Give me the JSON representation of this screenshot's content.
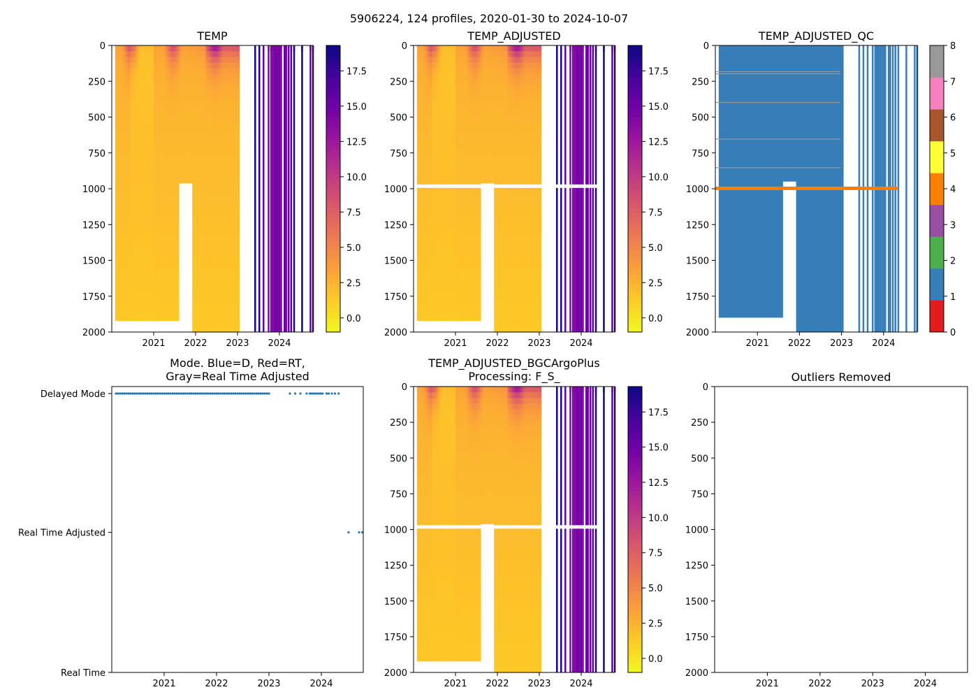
{
  "figure": {
    "suptitle": "5906224, 124 profiles, 2020-01-30 to 2024-10-07",
    "float_id": "5906224",
    "n_profiles": 124,
    "date_start": "2020-01-30",
    "date_end": "2024-10-07"
  },
  "colors": {
    "plasma_r": [
      "#f0f921",
      "#fdca26",
      "#fb9f3a",
      "#ed7953",
      "#d8576b",
      "#bd3786",
      "#9c179e",
      "#7201a8",
      "#46039f",
      "#0d0887"
    ],
    "qc": [
      "#e41a1c",
      "#377eb8",
      "#4daf4a",
      "#984ea3",
      "#ff7f00",
      "#ffff33",
      "#a65628",
      "#f781bf",
      "#999999"
    ],
    "mode_point": "#1f77b4",
    "axis": "#000000"
  },
  "chart_data": [
    {
      "id": "temp",
      "type": "heatmap",
      "title": "TEMP",
      "xlim": [
        2020.0,
        2024.8
      ],
      "ylim": [
        2000,
        0
      ],
      "xticks": [
        "2021",
        "2022",
        "2023",
        "2024"
      ],
      "xtick_values": [
        2021,
        2022,
        2023,
        2024
      ],
      "yticks": [
        "0",
        "250",
        "500",
        "750",
        "1000",
        "1250",
        "1500",
        "1750",
        "2000"
      ],
      "ytick_values": [
        0,
        250,
        500,
        750,
        1000,
        1250,
        1500,
        1750,
        2000
      ],
      "colorbar": {
        "min": -1.0,
        "max": 19.3,
        "ticks": [
          "0.0",
          "2.5",
          "5.0",
          "7.5",
          "10.0",
          "12.5",
          "15.0",
          "17.5"
        ],
        "tick_values": [
          0,
          2.5,
          5,
          7.5,
          10,
          12.5,
          15,
          17.5
        ]
      },
      "dropout_band": false
    },
    {
      "id": "temp_adjusted",
      "type": "heatmap",
      "title": "TEMP_ADJUSTED",
      "xlim": [
        2020.0,
        2024.8
      ],
      "ylim": [
        2000,
        0
      ],
      "xticks": [
        "2021",
        "2022",
        "2023",
        "2024"
      ],
      "xtick_values": [
        2021,
        2022,
        2023,
        2024
      ],
      "yticks": [
        "0",
        "250",
        "500",
        "750",
        "1000",
        "1250",
        "1500",
        "1750",
        "2000"
      ],
      "ytick_values": [
        0,
        250,
        500,
        750,
        1000,
        1250,
        1500,
        1750,
        2000
      ],
      "colorbar": {
        "min": -1.0,
        "max": 19.3,
        "ticks": [
          "0.0",
          "2.5",
          "5.0",
          "7.5",
          "10.0",
          "12.5",
          "15.0",
          "17.5"
        ],
        "tick_values": [
          0,
          2.5,
          5,
          7.5,
          10,
          12.5,
          15,
          17.5
        ]
      },
      "dropout_band": true
    },
    {
      "id": "temp_adjusted_qc",
      "type": "heatmap",
      "title": "TEMP_ADJUSTED_QC",
      "xlim": [
        2020.0,
        2024.8
      ],
      "ylim": [
        2000,
        0
      ],
      "xticks": [
        "2021",
        "2022",
        "2023",
        "2024"
      ],
      "xtick_values": [
        2021,
        2022,
        2023,
        2024
      ],
      "yticks": [
        "0",
        "250",
        "500",
        "750",
        "1000",
        "1250",
        "1500",
        "1750",
        "2000"
      ],
      "ytick_values": [
        0,
        250,
        500,
        750,
        1000,
        1250,
        1500,
        1750,
        2000
      ],
      "colorbar": {
        "min": 0,
        "max": 8,
        "ticks": [
          "0",
          "1",
          "2",
          "3",
          "4",
          "5",
          "6",
          "7",
          "8"
        ],
        "tick_values": [
          0,
          1,
          2,
          3,
          4,
          5,
          6,
          7,
          8
        ]
      },
      "dominant_qc": 1,
      "flagged_band": {
        "qc": 4,
        "depth": 985,
        "x_from": 2020.0,
        "x_to": 2024.35
      },
      "flagged_lines": {
        "qc": 8,
        "depths": [
          180,
          195,
          395,
          650,
          850
        ]
      }
    },
    {
      "id": "mode",
      "type": "scatter",
      "title_lines": [
        "Mode. Blue=D, Red=RT,",
        "Gray=Real Time Adjusted"
      ],
      "xlim": [
        2020.0,
        2024.8
      ],
      "xticks": [
        "2021",
        "2022",
        "2023",
        "2024"
      ],
      "xtick_values": [
        2021,
        2022,
        2023,
        2024
      ],
      "yticks": [
        "Delayed Mode",
        "Real Time Adjusted",
        "Real Time"
      ],
      "ytick_values": [
        2,
        1,
        0
      ],
      "series": [
        {
          "name": "Delayed Mode",
          "y": 2,
          "x": [
            2020.08,
            2020.12,
            2020.16,
            2020.2,
            2020.24,
            2020.28,
            2020.32,
            2020.36,
            2020.4,
            2020.44,
            2020.48,
            2020.52,
            2020.56,
            2020.6,
            2020.64,
            2020.68,
            2020.72,
            2020.76,
            2020.8,
            2020.84,
            2020.88,
            2020.92,
            2020.96,
            2021.0,
            2021.04,
            2021.08,
            2021.12,
            2021.16,
            2021.2,
            2021.24,
            2021.28,
            2021.32,
            2021.36,
            2021.4,
            2021.44,
            2021.48,
            2021.52,
            2021.56,
            2021.6,
            2021.64,
            2021.68,
            2021.72,
            2021.76,
            2021.8,
            2021.84,
            2021.88,
            2021.92,
            2021.96,
            2022.0,
            2022.04,
            2022.08,
            2022.12,
            2022.16,
            2022.2,
            2022.24,
            2022.28,
            2022.32,
            2022.36,
            2022.4,
            2022.44,
            2022.48,
            2022.52,
            2022.56,
            2022.6,
            2022.64,
            2022.68,
            2022.72,
            2022.76,
            2022.8,
            2022.84,
            2022.88,
            2022.92,
            2022.96,
            2023.0,
            2023.4,
            2023.5,
            2023.6,
            2023.72,
            2023.78,
            2023.82,
            2023.86,
            2023.9,
            2023.94,
            2023.98,
            2024.02,
            2024.1,
            2024.14,
            2024.2,
            2024.26,
            2024.33
          ]
        },
        {
          "name": "Real Time Adjusted",
          "y": 1,
          "x": [
            2024.52,
            2024.72,
            2024.78
          ]
        }
      ]
    },
    {
      "id": "temp_adjusted_bgcargoplus",
      "type": "heatmap",
      "title_lines": [
        "TEMP_ADJUSTED_BGCArgoPlus",
        "Processing: F_S_"
      ],
      "xlim": [
        2020.0,
        2024.8
      ],
      "ylim": [
        2000,
        0
      ],
      "xticks": [
        "2021",
        "2022",
        "2023",
        "2024"
      ],
      "xtick_values": [
        2021,
        2022,
        2023,
        2024
      ],
      "yticks": [
        "0",
        "250",
        "500",
        "750",
        "1000",
        "1250",
        "1500",
        "1750",
        "2000"
      ],
      "ytick_values": [
        0,
        250,
        500,
        750,
        1000,
        1250,
        1500,
        1750,
        2000
      ],
      "colorbar": {
        "min": -1.0,
        "max": 19.3,
        "ticks": [
          "0.0",
          "2.5",
          "5.0",
          "7.5",
          "10.0",
          "12.5",
          "15.0",
          "17.5"
        ],
        "tick_values": [
          0,
          2.5,
          5,
          7.5,
          10,
          12.5,
          15,
          17.5
        ]
      },
      "dropout_band": true
    },
    {
      "id": "outliers_removed",
      "type": "scatter",
      "title": "Outliers Removed",
      "xlim": [
        2020.0,
        2024.8
      ],
      "ylim": [
        2000,
        0
      ],
      "xticks": [
        "2021",
        "2022",
        "2023",
        "2024"
      ],
      "xtick_values": [
        2021,
        2022,
        2023,
        2024
      ],
      "yticks": [
        "0",
        "250",
        "500",
        "750",
        "1000",
        "1250",
        "1500",
        "1750",
        "2000"
      ],
      "ytick_values": [
        0,
        250,
        500,
        750,
        1000,
        1250,
        1500,
        1750,
        2000
      ],
      "series": []
    }
  ],
  "profiles": {
    "early_x": [
      2020.08,
      2020.12,
      2020.16,
      2020.2,
      2020.24,
      2020.28,
      2020.32,
      2020.36,
      2020.4,
      2020.44,
      2020.48,
      2020.52,
      2020.56,
      2020.6,
      2020.64,
      2020.68,
      2020.72,
      2020.76,
      2020.8,
      2020.84,
      2020.88,
      2020.92,
      2020.96,
      2021.0,
      2021.04,
      2021.08,
      2021.12,
      2021.16,
      2021.2,
      2021.24,
      2021.28,
      2021.32,
      2021.36,
      2021.4,
      2021.44,
      2021.48,
      2021.52,
      2021.56,
      2021.6,
      2021.64,
      2021.68,
      2021.72,
      2021.76,
      2021.8,
      2021.84,
      2021.88,
      2021.92,
      2021.96,
      2022.0,
      2022.04,
      2022.08,
      2022.12,
      2022.16,
      2022.2,
      2022.24,
      2022.28,
      2022.32,
      2022.36,
      2022.4,
      2022.44,
      2022.48,
      2022.52,
      2022.56,
      2022.6,
      2022.64,
      2022.68,
      2022.72,
      2022.76,
      2022.8,
      2022.84,
      2022.88,
      2022.92,
      2022.96,
      2023.0
    ],
    "late_x": [
      2023.4,
      2023.5,
      2023.6,
      2023.72,
      2023.78,
      2023.82,
      2023.86,
      2023.9,
      2023.94,
      2023.98,
      2024.02,
      2024.1,
      2024.14,
      2024.2,
      2024.26,
      2024.33,
      2024.52,
      2024.72,
      2024.78
    ]
  }
}
